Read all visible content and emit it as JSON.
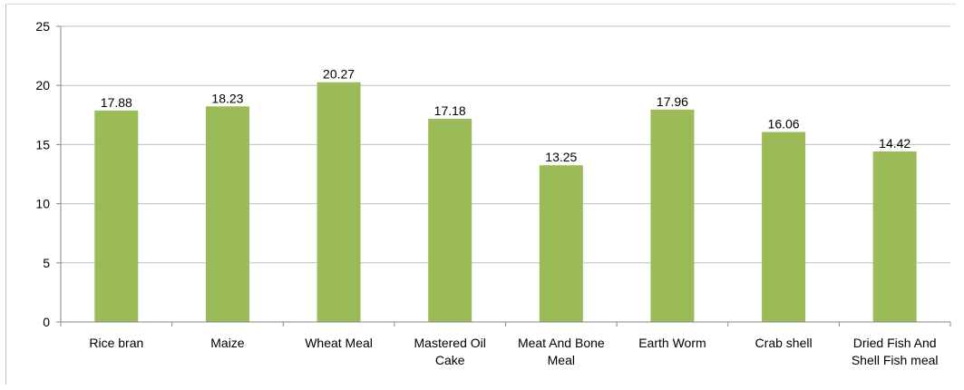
{
  "chart_data": {
    "type": "bar",
    "categories": [
      "Rice bran",
      "Maize",
      "Wheat Meal",
      "Mastered Oil Cake",
      "Meat And Bone Meal",
      "Earth Worm",
      "Crab shell",
      "Dried Fish And Shell Fish meal"
    ],
    "category_lines": [
      [
        "Rice bran"
      ],
      [
        "Maize"
      ],
      [
        "Wheat Meal"
      ],
      [
        "Mastered Oil",
        "Cake"
      ],
      [
        "Meat And Bone",
        "Meal"
      ],
      [
        "Earth Worm"
      ],
      [
        "Crab shell"
      ],
      [
        "Dried Fish And",
        "Shell Fish meal"
      ]
    ],
    "values": [
      17.88,
      18.23,
      20.27,
      17.18,
      13.25,
      17.96,
      16.06,
      14.42
    ],
    "data_labels": [
      "17.88",
      "18.23",
      "20.27",
      "17.18",
      "13.25",
      "17.96",
      "16.06",
      "14.42"
    ],
    "title": "",
    "xlabel": "",
    "ylabel": "",
    "ylim": [
      0,
      25
    ],
    "yticks": [
      "0",
      "5",
      "10",
      "15",
      "20",
      "25"
    ],
    "grid": true,
    "legend": "none",
    "colors": {
      "bar": "#9bbb59",
      "grid": "#bfbfbf",
      "axis": "#868686"
    }
  }
}
